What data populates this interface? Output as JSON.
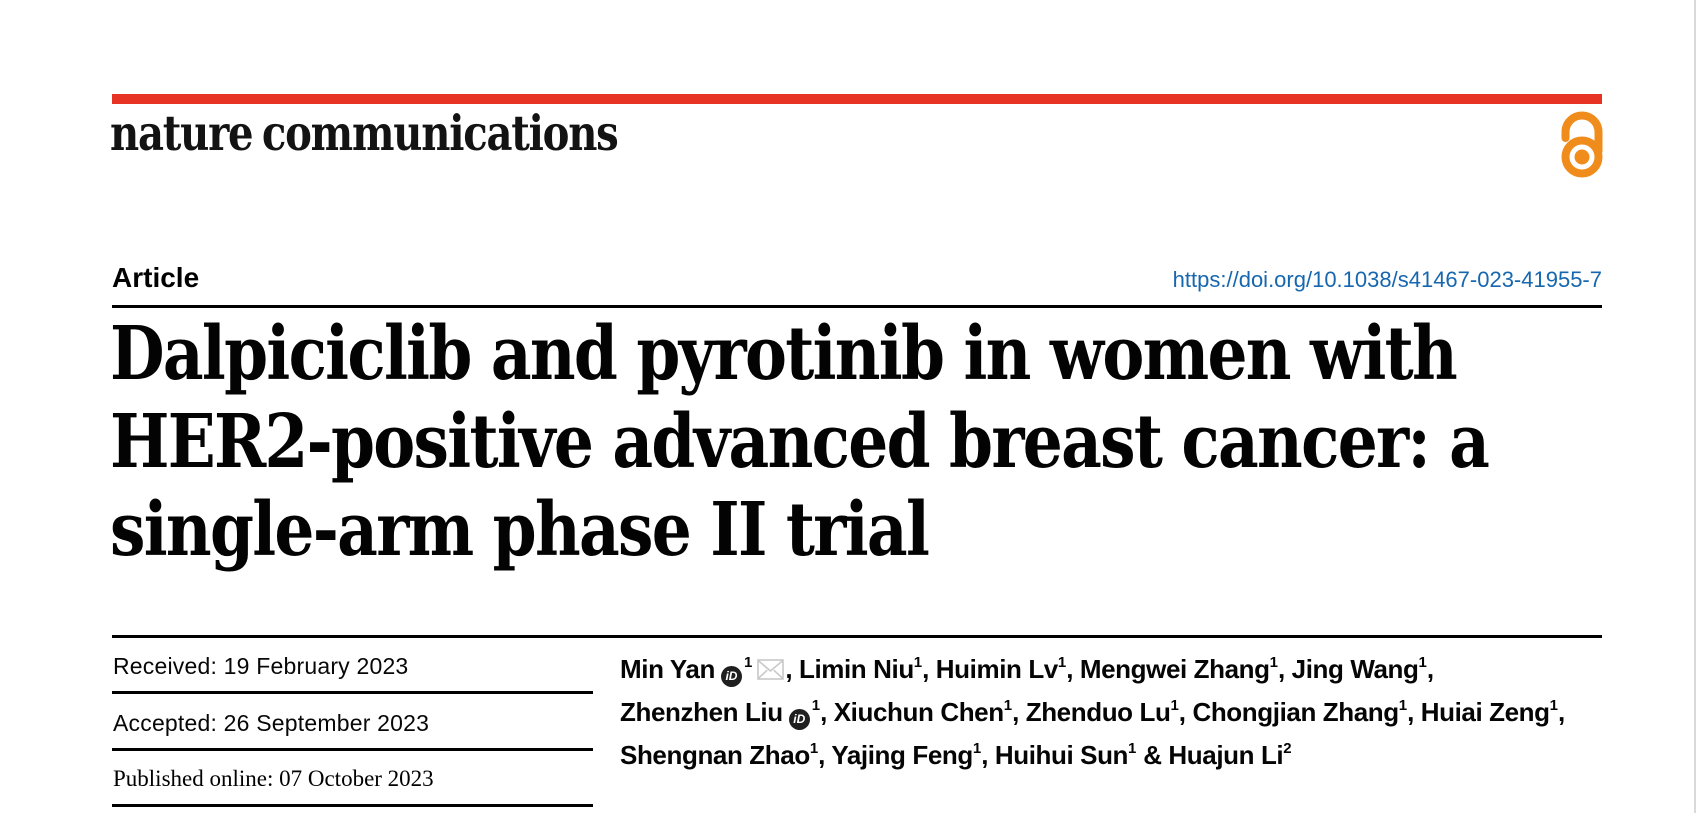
{
  "journal": {
    "wordmark": "nature communications",
    "open_access_icon": "open-access-lock-icon"
  },
  "article_header": {
    "type_label": "Article",
    "doi_link": "https://doi.org/10.1038/s41467-023-41955-7"
  },
  "title": {
    "lines": [
      "Dalpiciclib and pyrotinib in women with",
      "HER2-positive advanced breast cancer: a",
      "single-arm phase II trial"
    ]
  },
  "dates": {
    "received": "Received: 19 February 2023",
    "accepted": "Accepted: 26 September 2023",
    "published_online": "Published online: 07 October 2023"
  },
  "authors": {
    "orcid_badge_label": "iD",
    "lines": [
      {
        "segments": [
          {
            "text": "Min Yan"
          },
          {
            "icon": "orcid"
          },
          {
            "sup": "1"
          },
          {
            "icon": "envelope"
          },
          {
            "text": ", Limin Niu"
          },
          {
            "sup": "1"
          },
          {
            "text": ", Huimin Lv"
          },
          {
            "sup": "1"
          },
          {
            "text": ", Mengwei Zhang"
          },
          {
            "sup": "1"
          },
          {
            "text": ", Jing Wang"
          },
          {
            "sup": "1"
          },
          {
            "text": ","
          }
        ]
      },
      {
        "segments": [
          {
            "text": "Zhenzhen Liu"
          },
          {
            "icon": "orcid"
          },
          {
            "sup": "1"
          },
          {
            "text": ", Xiuchun Chen"
          },
          {
            "sup": "1"
          },
          {
            "text": ", Zhenduo Lu"
          },
          {
            "sup": "1"
          },
          {
            "text": ", Chongjian Zhang"
          },
          {
            "sup": "1"
          },
          {
            "text": ", Huiai Zeng"
          },
          {
            "sup": "1"
          },
          {
            "text": ","
          }
        ]
      },
      {
        "segments": [
          {
            "text": "Shengnan Zhao"
          },
          {
            "sup": "1"
          },
          {
            "text": ", Yajing Feng"
          },
          {
            "sup": "1"
          },
          {
            "text": ", Huihui Sun"
          },
          {
            "sup": "1"
          },
          {
            "text": " & Huajun Li"
          },
          {
            "sup": "2"
          }
        ]
      }
    ]
  },
  "colors": {
    "accent_red": "#e63323",
    "open_access_orange": "#f08c1b",
    "link_blue": "#1767af",
    "envelope_gray": "#c8c8c8",
    "orcid_black": "#1f1f1f"
  }
}
